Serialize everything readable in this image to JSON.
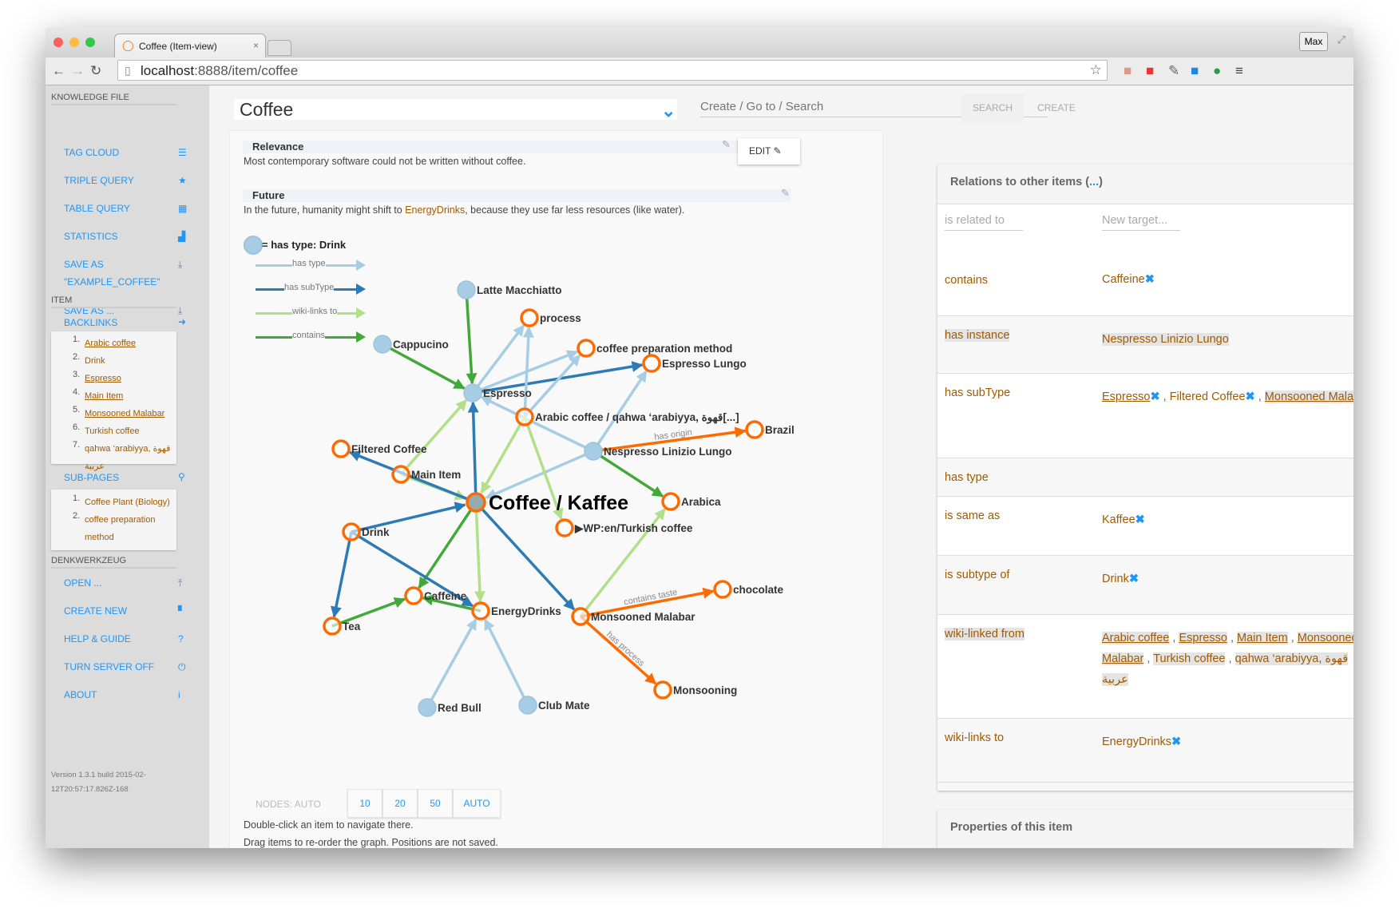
{
  "browser": {
    "tab_title": "Coffee (Item-view)",
    "url_host": "localhost",
    "url_rest": ":8888/item/coffee",
    "profile": "Max"
  },
  "sidebar": {
    "knowledge_file_heading": "KNOWLEDGE FILE",
    "knowledge_items": [
      {
        "label": "TAG CLOUD",
        "icon": "tag-cloud-icon",
        "glyph": "☰"
      },
      {
        "label": "TRIPLE QUERY",
        "icon": "star-icon",
        "glyph": "★"
      },
      {
        "label": "TABLE QUERY",
        "icon": "grid-icon",
        "glyph": "▦"
      },
      {
        "label": "STATISTICS",
        "icon": "bar-chart-icon",
        "glyph": "▟"
      },
      {
        "label": "SAVE AS",
        "label2": "\"EXAMPLE_COFFEE\"",
        "icon": "download-icon",
        "glyph": "⤓"
      },
      {
        "label": "SAVE AS ...",
        "icon": "download-icon",
        "glyph": "⤓"
      }
    ],
    "item_heading": "ITEM",
    "backlinks_label": "BACKLINKS",
    "backlinks": [
      {
        "num": "1.",
        "text": "Arabic coffee",
        "underline": true
      },
      {
        "num": "2.",
        "text": "Drink",
        "underline": false
      },
      {
        "num": "3.",
        "text": "Espresso",
        "underline": true
      },
      {
        "num": "4.",
        "text": "Main Item",
        "underline": true
      },
      {
        "num": "5.",
        "text": "Monsooned Malabar",
        "underline": true
      },
      {
        "num": "6.",
        "text": "Turkish coffee",
        "underline": false
      },
      {
        "num": "7.",
        "text": "qahwa ‘arabiyya, قهوة عربية",
        "underline": false
      }
    ],
    "subpages_label": "SUB-PAGES",
    "subpages": [
      {
        "num": "1.",
        "text": "Coffee Plant (Biology)"
      },
      {
        "num": "2.",
        "text": "coffee preparation method"
      }
    ],
    "denkwerkzeug_heading": "DENKWERKZEUG",
    "tool_items": [
      {
        "label": "OPEN ...",
        "icon": "upload-icon",
        "glyph": "⤒"
      },
      {
        "label": "CREATE NEW",
        "icon": "new-file-icon",
        "glyph": "▘"
      },
      {
        "label": "HELP & GUIDE",
        "icon": "help-icon",
        "glyph": "?"
      },
      {
        "label": "TURN SERVER OFF",
        "icon": "power-icon",
        "glyph": "⏻"
      },
      {
        "label": "ABOUT",
        "icon": "info-icon",
        "glyph": "i"
      }
    ],
    "version": "Version 1.3.1 build 2015-02-12T20:57:17.826Z-168"
  },
  "header": {
    "title_value": "Coffee",
    "search_placeholder": "Create / Go to / Search",
    "search_button": "SEARCH",
    "create_button": "CREATE"
  },
  "content": {
    "edit_label": "EDIT",
    "sections": [
      {
        "heading": "Relevance",
        "text": "Most contemporary software could not be written without coffee."
      },
      {
        "heading": "Future",
        "text_before": "In the future, humanity might shift to ",
        "link": "EnergyDrinks",
        "text_after": ", because they use far less resources (like water)."
      }
    ],
    "legend_type": "= has type: Drink",
    "legend_edges": [
      {
        "label": "has type",
        "color": "#a6cde3"
      },
      {
        "label": "has subType",
        "color": "#2d7bb6"
      },
      {
        "label": "wiki-links to",
        "color": "#b2df8a"
      },
      {
        "label": "contains",
        "color": "#43a83a"
      }
    ],
    "nodes_label": "NODES: AUTO",
    "node_buttons": [
      "10",
      "20",
      "50",
      "AUTO"
    ],
    "hint1": "Double-click an item to navigate there.",
    "hint2": "Drag items to re-order the graph. Positions are not saved."
  },
  "graph": {
    "colors": {
      "has_type": "#a6cde3",
      "has_subtype": "#2d7bb6",
      "wiki_links": "#b2df8a",
      "contains": "#43a83a",
      "other": "#ff6a00",
      "node_orange": "#ff6a00",
      "node_drink": "#a6cde3"
    },
    "nodes": [
      {
        "id": "coffee",
        "label": "Coffee / Kaffee",
        "drink": false,
        "main": true
      },
      {
        "id": "latte",
        "label": "Latte Macchiatto",
        "drink": true
      },
      {
        "id": "process",
        "label": "process",
        "drink": false
      },
      {
        "id": "prep",
        "label": "coffee preparation method",
        "drink": false
      },
      {
        "id": "lungo",
        "label": "Espresso Lungo",
        "drink": false
      },
      {
        "id": "cappucino",
        "label": "Cappucino",
        "drink": true
      },
      {
        "id": "espresso",
        "label": "Espresso",
        "drink": true
      },
      {
        "id": "arabic",
        "label": "Arabic coffee / qahwa ‘arabiyya, قهوة[...]",
        "drink": false
      },
      {
        "id": "nespresso",
        "label": "Nespresso Linizio Lungo",
        "drink": true
      },
      {
        "id": "brazil",
        "label": "Brazil",
        "drink": false
      },
      {
        "id": "filtered",
        "label": "Filtered Coffee",
        "drink": false
      },
      {
        "id": "mainitem",
        "label": "Main Item",
        "drink": false
      },
      {
        "id": "turkish",
        "label": "▶WP:en/Turkish coffee",
        "drink": false
      },
      {
        "id": "arabica",
        "label": "Arabica",
        "drink": false
      },
      {
        "id": "drink",
        "label": "Drink",
        "drink": false
      },
      {
        "id": "caffeine",
        "label": "Caffeine",
        "drink": false
      },
      {
        "id": "energy",
        "label": "EnergyDrinks",
        "drink": false
      },
      {
        "id": "tea",
        "label": "Tea",
        "drink": false
      },
      {
        "id": "malabar",
        "label": "Monsooned Malabar",
        "drink": false
      },
      {
        "id": "chocolate",
        "label": "chocolate",
        "drink": false
      },
      {
        "id": "monsooning",
        "label": "Monsooning",
        "drink": false
      },
      {
        "id": "redbull",
        "label": "Red Bull",
        "drink": true
      },
      {
        "id": "clubmate",
        "label": "Club Mate",
        "drink": true
      }
    ],
    "edges": [
      {
        "from": "latte",
        "to": "espresso",
        "type": "contains"
      },
      {
        "from": "cappucino",
        "to": "espresso",
        "type": "contains"
      },
      {
        "from": "espresso",
        "to": "process",
        "type": "has_type"
      },
      {
        "from": "espresso",
        "to": "prep",
        "type": "has_type"
      },
      {
        "from": "espresso",
        "to": "lungo",
        "type": "has_subtype"
      },
      {
        "from": "arabic",
        "to": "process",
        "type": "has_type"
      },
      {
        "from": "arabic",
        "to": "prep",
        "type": "has_type"
      },
      {
        "from": "nespresso",
        "to": "espresso",
        "type": "has_type"
      },
      {
        "from": "nespresso",
        "to": "lungo",
        "type": "has_type"
      },
      {
        "from": "nespresso",
        "to": "coffee",
        "type": "has_type"
      },
      {
        "from": "nespresso",
        "to": "brazil",
        "type": "other",
        "label": "has origin"
      },
      {
        "from": "nespresso",
        "to": "arabica",
        "type": "contains"
      },
      {
        "from": "arabic",
        "to": "coffee",
        "type": "wiki_links"
      },
      {
        "from": "arabic",
        "to": "turkish",
        "type": "wiki_links"
      },
      {
        "from": "mainitem",
        "to": "espresso",
        "type": "wiki_links"
      },
      {
        "from": "mainitem",
        "to": "coffee",
        "type": "wiki_links"
      },
      {
        "from": "coffee",
        "to": "espresso",
        "type": "has_subtype"
      },
      {
        "from": "coffee",
        "to": "filtered",
        "type": "has_subtype"
      },
      {
        "from": "drink",
        "to": "coffee",
        "type": "has_subtype"
      },
      {
        "from": "coffee",
        "to": "caffeine",
        "type": "contains"
      },
      {
        "from": "coffee",
        "to": "energy",
        "type": "wiki_links"
      },
      {
        "from": "coffee",
        "to": "malabar",
        "type": "has_subtype"
      },
      {
        "from": "drink",
        "to": "tea",
        "type": "has_subtype"
      },
      {
        "from": "drink",
        "to": "energy",
        "type": "has_subtype"
      },
      {
        "from": "tea",
        "to": "caffeine",
        "type": "contains"
      },
      {
        "from": "energy",
        "to": "caffeine",
        "type": "contains"
      },
      {
        "from": "malabar",
        "to": "arabica",
        "type": "wiki_links"
      },
      {
        "from": "malabar",
        "to": "chocolate",
        "type": "other",
        "label": "contains taste"
      },
      {
        "from": "malabar",
        "to": "monsooning",
        "type": "other",
        "label": "has process"
      },
      {
        "from": "redbull",
        "to": "energy",
        "type": "has_type"
      },
      {
        "from": "clubmate",
        "to": "energy",
        "type": "has_type"
      }
    ]
  },
  "relations": {
    "title": "Relations to other items (",
    "title_link": "...",
    "title_end": ")",
    "predicate_placeholder": "is related to",
    "target_placeholder": "New target...",
    "rows": [
      {
        "predicate": "contains",
        "hl": false,
        "values": [
          {
            "text": "Caffeine",
            "x": true
          }
        ]
      },
      {
        "predicate": "has instance",
        "hl": true,
        "values": [
          {
            "text": "Nespresso Linizio Lungo",
            "hl": true
          }
        ]
      },
      {
        "predicate": "has subType",
        "hl": false,
        "values": [
          {
            "text": "Espresso",
            "u": true,
            "x": true
          },
          {
            "text": "Filtered Coffee",
            "x": true
          },
          {
            "text": "Monsooned Malabar",
            "u": true,
            "hl": true
          }
        ]
      },
      {
        "predicate": "has type",
        "hl": false,
        "values": []
      },
      {
        "predicate": "is same as",
        "hl": false,
        "values": [
          {
            "text": "Kaffee",
            "x": true
          }
        ]
      },
      {
        "predicate": "is subtype of",
        "hl": false,
        "values": [
          {
            "text": "Drink",
            "x": true
          }
        ]
      },
      {
        "predicate": "wiki-linked from",
        "hl": true,
        "values": [
          {
            "text": "Arabic coffee",
            "u": true,
            "hl": true
          },
          {
            "text": "Espresso",
            "u": true,
            "hl": true
          },
          {
            "text": "Main Item",
            "u": true,
            "hl": true
          },
          {
            "text": "Monsooned Malabar",
            "u": true,
            "hl": true
          },
          {
            "text": "Turkish coffee",
            "hl": true
          },
          {
            "text": "qahwa ‘arabiyya, قهوة عربية",
            "hl": true
          }
        ]
      },
      {
        "predicate": "wiki-links to",
        "hl": false,
        "values": [
          {
            "text": "EnergyDrinks",
            "x": true
          }
        ]
      }
    ],
    "properties_title": "Properties of this item"
  }
}
